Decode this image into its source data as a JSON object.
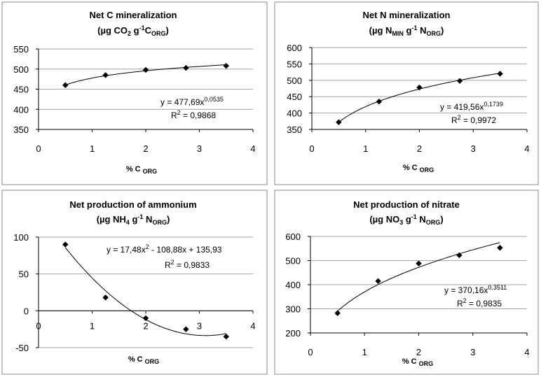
{
  "chart_data": [
    {
      "type": "scatter",
      "title": "Net C mineralization",
      "subtitle": "(µg CO₂ g⁻¹C_ORG)",
      "xlabel": "% C ORG",
      "ylabel": "",
      "xlim": [
        0,
        4
      ],
      "ylim": [
        350,
        550
      ],
      "xticks": [
        0,
        1,
        2,
        3,
        4
      ],
      "yticks": [
        350,
        400,
        450,
        500,
        550
      ],
      "grid": "horizontal",
      "series": [
        {
          "x": [
            0.5,
            1.25,
            2.0,
            2.75,
            3.5
          ],
          "y": [
            460,
            485,
            498,
            503,
            508
          ],
          "trendline": {
            "kind": "power",
            "a": 477.69,
            "b": 0.0535,
            "r2": 0.9868
          }
        }
      ],
      "annotations": {
        "equation": "y = 477,69x0,0535",
        "r2_text": "R2 = 0,9868"
      }
    },
    {
      "type": "scatter",
      "title": "Net N mineralization",
      "subtitle": "(µg N_MIN g⁻¹ N_ORG)",
      "xlabel": "% C ORG",
      "ylabel": "",
      "xlim": [
        0,
        4
      ],
      "ylim": [
        350,
        600
      ],
      "xticks": [
        0,
        1,
        2,
        3,
        4
      ],
      "yticks": [
        350,
        400,
        450,
        500,
        550,
        600
      ],
      "grid": "horizontal",
      "series": [
        {
          "x": [
            0.5,
            1.25,
            2.0,
            2.75,
            3.5
          ],
          "y": [
            372,
            435,
            478,
            498,
            520
          ],
          "trendline": {
            "kind": "power",
            "a": 419.56,
            "b": 0.1739,
            "r2": 0.9972
          }
        }
      ],
      "annotations": {
        "equation": "y = 419,56x0,1739",
        "r2_text": "R2 = 0,9972"
      }
    },
    {
      "type": "scatter",
      "title": "Net production of ammonium",
      "subtitle": "(µg NH₄ g⁻¹ N_ORG)",
      "xlabel": "% C ORG",
      "ylabel": "",
      "xlim": [
        0,
        4
      ],
      "ylim": [
        -50,
        100
      ],
      "xticks": [
        0,
        1,
        2,
        3,
        4
      ],
      "yticks": [
        -50,
        0,
        50,
        100
      ],
      "grid": "horizontal",
      "series": [
        {
          "x": [
            0.5,
            1.25,
            2.0,
            2.75,
            3.5
          ],
          "y": [
            90,
            18,
            -10,
            -25,
            -35
          ],
          "trendline": {
            "kind": "poly2",
            "a": 17.48,
            "b": -108.88,
            "c": 135.93,
            "r2": 0.9833
          }
        }
      ],
      "annotations": {
        "equation": "y = 17,48x2 - 108,88x + 135,93",
        "r2_text": "R2 = 0,9833"
      }
    },
    {
      "type": "scatter",
      "title": "Net production of nitrate",
      "subtitle": "(µg NO₃ g⁻¹ N_ORG)",
      "xlabel": "% C ORG",
      "ylabel": "",
      "xlim": [
        0,
        4
      ],
      "ylim": [
        200,
        600
      ],
      "xticks": [
        0,
        1,
        2,
        3,
        4
      ],
      "yticks": [
        200,
        300,
        400,
        500,
        600
      ],
      "grid": "horizontal",
      "series": [
        {
          "x": [
            0.5,
            1.25,
            2.0,
            2.75,
            3.5
          ],
          "y": [
            282,
            415,
            488,
            522,
            553
          ],
          "trendline": {
            "kind": "power",
            "a": 370.16,
            "b": 0.3511,
            "r2": 0.9835
          }
        }
      ],
      "annotations": {
        "equation": "y = 370,16x0,3511",
        "r2_text": "R2 = 0,9835"
      }
    }
  ]
}
